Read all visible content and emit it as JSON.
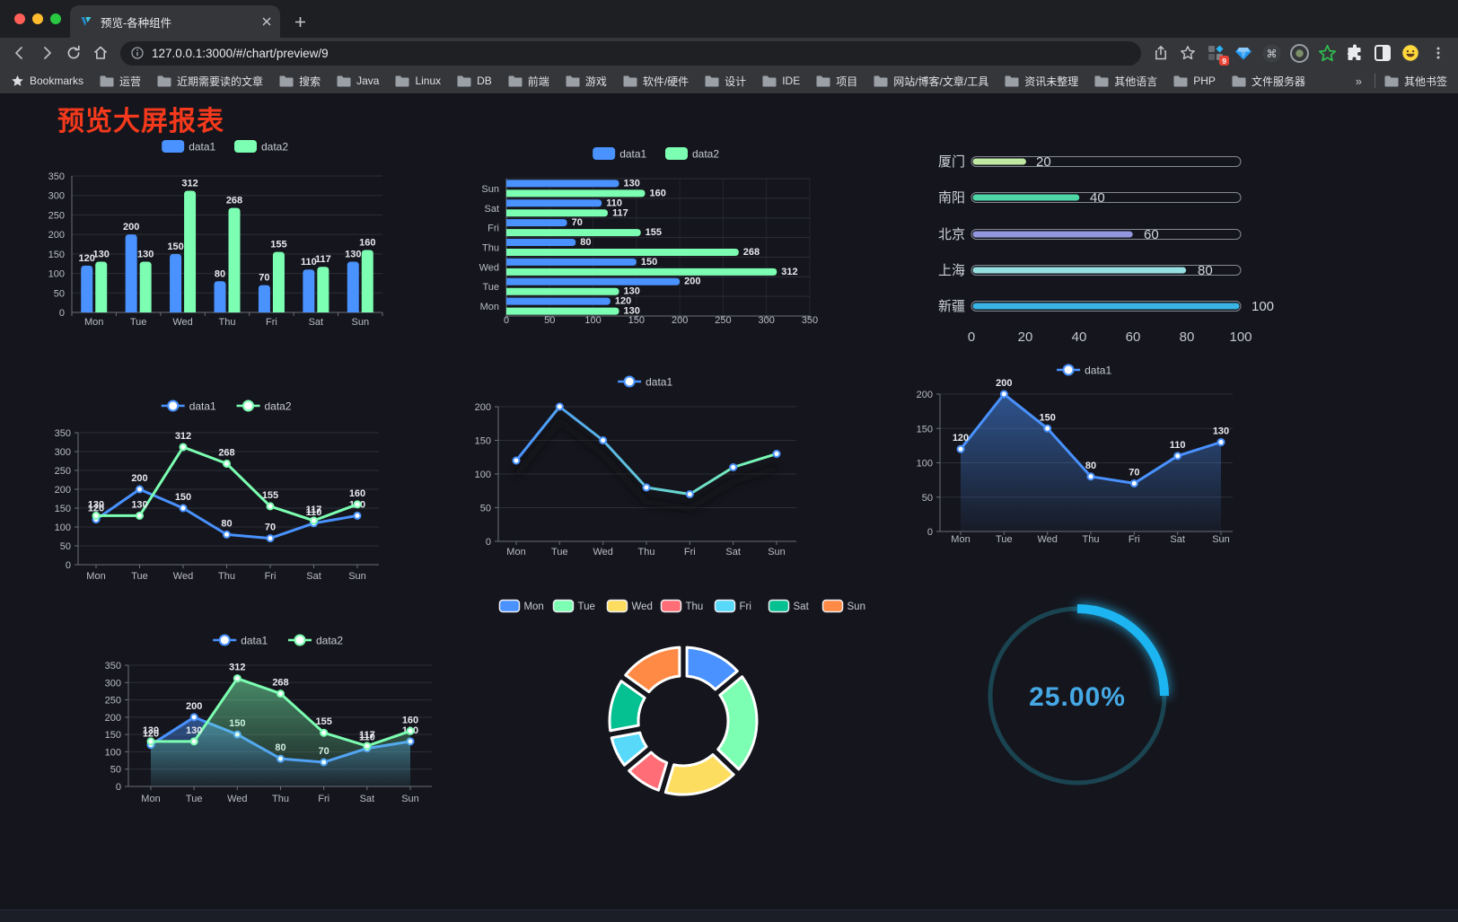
{
  "browser": {
    "tab": {
      "title": "预览-各种组件"
    },
    "url": "127.0.0.1:3000/#/chart/preview/9",
    "extension_badge": "9",
    "bookmarks_label": "Bookmarks",
    "bookmarks": [
      "运营",
      "近期需要读的文章",
      "搜索",
      "Java",
      "Linux",
      "DB",
      "前端",
      "游戏",
      "软件/硬件",
      "设计",
      "IDE",
      "项目",
      "网站/博客/文章/工具",
      "资讯未整理",
      "其他语言",
      "PHP",
      "文件服务器"
    ],
    "bookmarks_overflow": "»",
    "other_bookmarks": "其他书签"
  },
  "page": {
    "title": "预览大屏报表",
    "title_color": "#f5391c"
  },
  "chart_data": [
    {
      "type": "bar",
      "orientation": "vertical",
      "categories": [
        "Mon",
        "Tue",
        "Wed",
        "Thu",
        "Fri",
        "Sat",
        "Sun"
      ],
      "series": [
        {
          "name": "data1",
          "color": "#4992ff",
          "values": [
            120,
            200,
            150,
            80,
            70,
            110,
            130
          ]
        },
        {
          "name": "data2",
          "color": "#7cffb2",
          "values": [
            130,
            130,
            312,
            268,
            155,
            117,
            160
          ]
        }
      ],
      "ylim": [
        0,
        350
      ],
      "yticks": [
        0,
        50,
        100,
        150,
        200,
        250,
        300,
        350
      ],
      "show_labels": true,
      "legend_position": "top",
      "grid": true
    },
    {
      "type": "bar",
      "orientation": "horizontal",
      "categories": [
        "Mon",
        "Tue",
        "Wed",
        "Thu",
        "Fri",
        "Sat",
        "Sun"
      ],
      "series": [
        {
          "name": "data1",
          "color": "#4992ff",
          "values": [
            120,
            200,
            150,
            80,
            70,
            110,
            130
          ]
        },
        {
          "name": "data2",
          "color": "#7cffb2",
          "values": [
            130,
            130,
            312,
            268,
            155,
            117,
            160
          ]
        }
      ],
      "xlim": [
        0,
        350
      ],
      "xticks": [
        0,
        50,
        100,
        150,
        200,
        250,
        300,
        350
      ],
      "show_labels": true,
      "legend_position": "top",
      "grid": true
    },
    {
      "type": "progress",
      "max": 100,
      "xticks": [
        0,
        20,
        40,
        60,
        80,
        100
      ],
      "items": [
        {
          "label": "厦门",
          "value": 20,
          "color": "#bfe8a2"
        },
        {
          "label": "南阳",
          "value": 40,
          "color": "#4fd6a6"
        },
        {
          "label": "北京",
          "value": 60,
          "color": "#9196de"
        },
        {
          "label": "上海",
          "value": 80,
          "color": "#95dfe1"
        },
        {
          "label": "新疆",
          "value": 100,
          "color": "#3ab4e5"
        }
      ]
    },
    {
      "type": "line",
      "categories": [
        "Mon",
        "Tue",
        "Wed",
        "Thu",
        "Fri",
        "Sat",
        "Sun"
      ],
      "series": [
        {
          "name": "data1",
          "color": "#4992ff",
          "values": [
            120,
            200,
            150,
            80,
            70,
            110,
            130
          ]
        },
        {
          "name": "data2",
          "color": "#7cffb2",
          "values": [
            130,
            130,
            312,
            268,
            155,
            117,
            160
          ]
        }
      ],
      "ylim": [
        0,
        350
      ],
      "yticks": [
        0,
        50,
        100,
        150,
        200,
        250,
        300,
        350
      ],
      "show_labels": true,
      "legend_position": "top",
      "grid": true
    },
    {
      "type": "line",
      "variant": "gradient",
      "categories": [
        "Mon",
        "Tue",
        "Wed",
        "Thu",
        "Fri",
        "Sat",
        "Sun"
      ],
      "series": [
        {
          "name": "data1",
          "color": "#4992ff",
          "gradient": [
            "#4992ff",
            "#7cffb2"
          ],
          "values": [
            120,
            200,
            150,
            80,
            70,
            110,
            130
          ]
        }
      ],
      "ylim": [
        0,
        200
      ],
      "yticks": [
        0,
        50,
        100,
        150,
        200
      ],
      "show_labels": false,
      "legend_position": "top",
      "grid": true
    },
    {
      "type": "line",
      "variant": "area",
      "categories": [
        "Mon",
        "Tue",
        "Wed",
        "Thu",
        "Fri",
        "Sat",
        "Sun"
      ],
      "series": [
        {
          "name": "data1",
          "color": "#4992ff",
          "area": true,
          "values": [
            120,
            200,
            150,
            80,
            70,
            110,
            130
          ]
        }
      ],
      "ylim": [
        0,
        200
      ],
      "yticks": [
        0,
        50,
        100,
        150,
        200
      ],
      "show_labels": true,
      "legend_position": "top",
      "grid": true
    },
    {
      "type": "line",
      "variant": "area",
      "categories": [
        "Mon",
        "Tue",
        "Wed",
        "Thu",
        "Fri",
        "Sat",
        "Sun"
      ],
      "series": [
        {
          "name": "data1",
          "color": "#4992ff",
          "area": true,
          "values": [
            120,
            200,
            150,
            80,
            70,
            110,
            130
          ]
        },
        {
          "name": "data2",
          "color": "#7cffb2",
          "area": true,
          "values": [
            130,
            130,
            312,
            268,
            155,
            117,
            160
          ]
        }
      ],
      "ylim": [
        0,
        350
      ],
      "yticks": [
        0,
        50,
        100,
        150,
        200,
        250,
        300,
        350
      ],
      "show_labels": true,
      "legend_position": "top",
      "grid": true
    },
    {
      "type": "pie",
      "shape": "donut",
      "categories": [
        "Mon",
        "Tue",
        "Wed",
        "Thu",
        "Fri",
        "Sat",
        "Sun"
      ],
      "values": [
        120,
        200,
        150,
        80,
        70,
        110,
        130
      ],
      "colors": [
        "#4992ff",
        "#7cffb2",
        "#fddd60",
        "#ff6e76",
        "#58d9f9",
        "#05c091",
        "#ff8a45"
      ],
      "legend_position": "top"
    },
    {
      "type": "gauge",
      "value": 25,
      "value_label": "25.00%",
      "color": "#1cb5f2",
      "track_color": "#1a4451",
      "text_color": "#45a9e6"
    }
  ]
}
